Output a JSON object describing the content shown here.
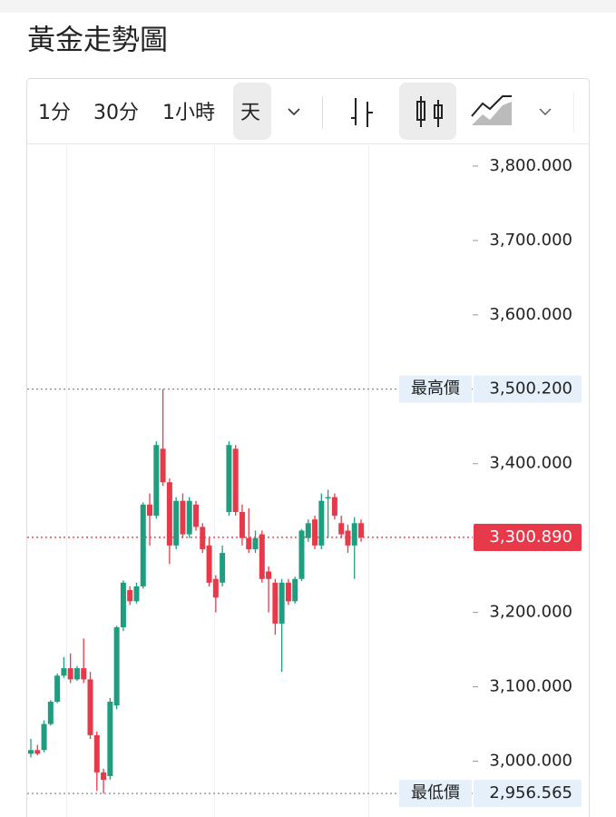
{
  "chart_data": {
    "type": "candlestick",
    "title": "黃金走勢圖",
    "intervals": [
      "1分",
      "30分",
      "1小時",
      "天"
    ],
    "active_interval": 3,
    "up_color": "#1e9e7f",
    "down_color": "#e8394a",
    "open": [
      3010,
      3015,
      3015,
      3050,
      3080,
      3115,
      3125,
      3110,
      3125,
      3110,
      3035,
      2985,
      2980,
      3075,
      3180,
      3230,
      3215,
      3235,
      3345,
      3330,
      3420,
      3375,
      3290,
      3350,
      3305,
      3345,
      3315,
      3290,
      3245,
      3240,
      3335,
      3420,
      3335,
      3300,
      3285,
      3305,
      3255,
      3240,
      3185,
      3240,
      3215,
      3245,
      3300,
      3325,
      3290,
      3355,
      3355,
      3320,
      3310,
      3290,
      3320
    ],
    "high": [
      3030,
      3022,
      3055,
      3082,
      3118,
      3140,
      3145,
      3128,
      3165,
      3120,
      3040,
      2990,
      3085,
      3182,
      3243,
      3235,
      3240,
      3348,
      3360,
      3430,
      3500.2,
      3380,
      3355,
      3360,
      3355,
      3350,
      3320,
      3300,
      3250,
      3290,
      3430,
      3425,
      3345,
      3340,
      3310,
      3310,
      3262,
      3245,
      3245,
      3245,
      3248,
      3312,
      3325,
      3330,
      3360,
      3365,
      3360,
      3330,
      3318,
      3328,
      3325
    ],
    "low": [
      3005,
      3008,
      3012,
      3048,
      3078,
      3112,
      3105,
      3108,
      3105,
      3030,
      2960,
      2956.565,
      2975,
      3070,
      3175,
      3210,
      3212,
      3232,
      3290,
      3326,
      3370,
      3265,
      3285,
      3300,
      3300,
      3310,
      3280,
      3235,
      3200,
      3235,
      3330,
      3330,
      3290,
      3280,
      3280,
      3240,
      3200,
      3170,
      3120,
      3210,
      3212,
      3242,
      3295,
      3285,
      3285,
      3300,
      3325,
      3300,
      3280,
      3245,
      3295
    ],
    "close": [
      3015,
      3010,
      3050,
      3080,
      3115,
      3125,
      3110,
      3125,
      3110,
      3035,
      2985,
      2975,
      3080,
      3180,
      3240,
      3215,
      3235,
      3345,
      3330,
      3425,
      3375,
      3290,
      3350,
      3305,
      3350,
      3315,
      3285,
      3240,
      3220,
      3280,
      3425,
      3335,
      3300,
      3285,
      3300,
      3245,
      3245,
      3185,
      3240,
      3215,
      3245,
      3310,
      3320,
      3290,
      3350,
      3355,
      3330,
      3305,
      3290,
      3320,
      3300.89
    ],
    "ylim": [
      2925,
      3828
    ],
    "yticks": [
      {
        "value": 3000,
        "label": "3,000.000"
      },
      {
        "value": 3100,
        "label": "3,100.000"
      },
      {
        "value": 3200,
        "label": "3,200.000"
      },
      {
        "value": 3400,
        "label": "3,400.000"
      },
      {
        "value": 3600,
        "label": "3,600.000"
      },
      {
        "value": 3700,
        "label": "3,700.000"
      },
      {
        "value": 3800,
        "label": "3,800.000"
      }
    ],
    "high_marker": {
      "label": "最高價",
      "value": 3500.2,
      "value_label": "3,500.200"
    },
    "low_marker": {
      "label": "最低價",
      "value": 2956.565,
      "value_label": "2,956.565"
    },
    "last_price": {
      "value": 3300.89,
      "value_label": "3,300.890"
    }
  }
}
